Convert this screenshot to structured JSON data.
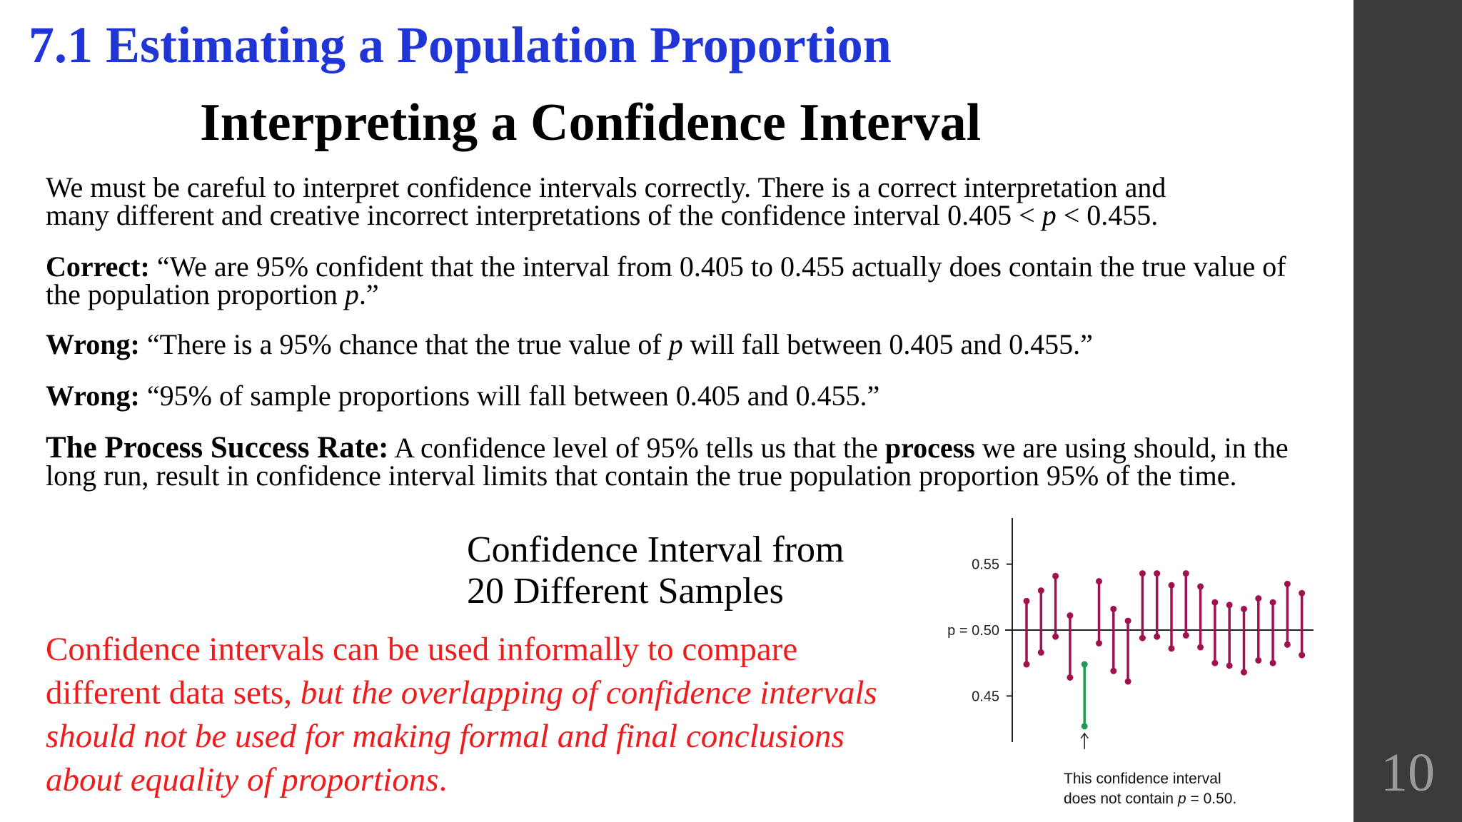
{
  "slide": {
    "title": "7.1 Estimating a Population Proportion",
    "subtitle": "Interpreting a Confidence Interval",
    "page_number": "10"
  },
  "body": {
    "intro": {
      "line1": "We must be careful to interpret confidence intervals correctly. There is a correct interpretation and",
      "line2_a": "many different and creative incorrect interpretations of the confidence interval 0.405 < ",
      "line2_p": "p",
      "line2_b": " < 0.455."
    },
    "correct": {
      "label": "Correct:",
      "text_a": " “We are 95% confident that the interval from 0.405 to 0.455 actually does contain the true value of the population proportion ",
      "p": "p",
      "text_b": ".”"
    },
    "wrong1": {
      "label": "Wrong:",
      "text_a": " “There is a 95% chance that the true value of ",
      "p": "p",
      "text_b": " will fall between 0.405 and 0.455.”"
    },
    "wrong2": {
      "label": "Wrong:",
      "text": " “95% of sample proportions will fall between 0.405 and 0.455.”"
    },
    "process": {
      "label": "The Process Success Rate:",
      "text_a": " A confidence level of 95% tells us that the ",
      "bold": "process",
      "text_b": " we are using should, in the long run, result in confidence interval limits that contain the true population proportion 95% of the time."
    }
  },
  "chart_caption": {
    "line1": "Confidence Interval from",
    "line2": "20 Different Samples"
  },
  "note": {
    "plain": "Confidence intervals can be used informally to compare different data sets, ",
    "italic": "but the overlapping of confidence intervals should not be used for making formal and final conclusions about equality of proportions",
    "end": "."
  },
  "colors": {
    "title_blue": "#1f35d6",
    "note_red": "#ee1c1c",
    "interval_containing": "#a0124f",
    "interval_missing": "#1f9a55",
    "sidebar": "#3b3b3b"
  },
  "chart_data": {
    "type": "interval",
    "title": "",
    "ylim": [
      0.415,
      0.585
    ],
    "y_ticks": [
      {
        "value": 0.55,
        "label": "0.55"
      },
      {
        "value": 0.5,
        "label": "p = 0.50"
      },
      {
        "value": 0.45,
        "label": "0.45"
      }
    ],
    "reference_line": 0.5,
    "intervals": [
      {
        "lower": 0.474,
        "upper": 0.522
      },
      {
        "lower": 0.483,
        "upper": 0.53
      },
      {
        "lower": 0.495,
        "upper": 0.541
      },
      {
        "lower": 0.464,
        "upper": 0.511
      },
      {
        "lower": 0.427,
        "upper": 0.474
      },
      {
        "lower": 0.49,
        "upper": 0.537
      },
      {
        "lower": 0.469,
        "upper": 0.516
      },
      {
        "lower": 0.461,
        "upper": 0.507
      },
      {
        "lower": 0.494,
        "upper": 0.543
      },
      {
        "lower": 0.495,
        "upper": 0.543
      },
      {
        "lower": 0.486,
        "upper": 0.534
      },
      {
        "lower": 0.496,
        "upper": 0.543
      },
      {
        "lower": 0.487,
        "upper": 0.533
      },
      {
        "lower": 0.475,
        "upper": 0.521
      },
      {
        "lower": 0.473,
        "upper": 0.519
      },
      {
        "lower": 0.468,
        "upper": 0.516
      },
      {
        "lower": 0.477,
        "upper": 0.524
      },
      {
        "lower": 0.475,
        "upper": 0.521
      },
      {
        "lower": 0.489,
        "upper": 0.535
      },
      {
        "lower": 0.481,
        "upper": 0.528
      }
    ],
    "missing_index": 4,
    "annotation": {
      "line1": "This confidence interval",
      "line2_a": "does not contain ",
      "line2_p": "p",
      "line2_b": " = 0.50."
    }
  }
}
